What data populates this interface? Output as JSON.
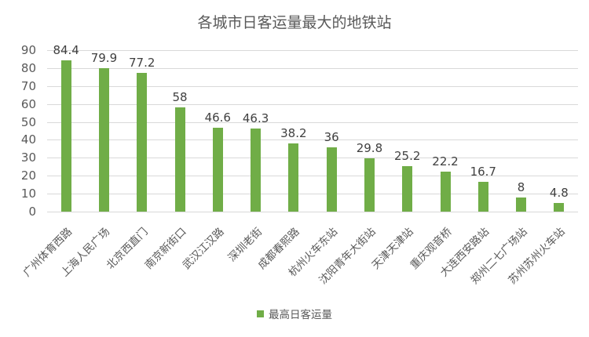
{
  "chart_data": {
    "type": "bar",
    "title": "各城市日客运量最大的地铁站",
    "xlabel": "",
    "ylabel": "",
    "ylim": [
      0,
      90
    ],
    "yticks": [
      0,
      10,
      20,
      30,
      40,
      50,
      60,
      70,
      80,
      90
    ],
    "grid": true,
    "legend_position": "bottom",
    "categories": [
      "广州体育西路",
      "上海人民广场",
      "北京西直门",
      "南京新街口",
      "武汉江汉路",
      "深圳老街",
      "成都春熙路",
      "杭州火车东站",
      "沈阳青年大街站",
      "天津天津站",
      "重庆观音桥",
      "大连西安路站",
      "郑州二七广场站",
      "苏州苏州火车站"
    ],
    "series": [
      {
        "name": "最高日客运量",
        "color": "#70ad47",
        "values": [
          84.4,
          79.9,
          77.2,
          58,
          46.6,
          46.3,
          38.2,
          36,
          29.8,
          25.2,
          22.2,
          16.7,
          8,
          4.8
        ],
        "labels": [
          "84.4",
          "79.9",
          "77.2",
          "58",
          "46.6",
          "46.3",
          "38.2",
          "36",
          "29.8",
          "25.2",
          "22.2",
          "16.7",
          "8",
          "4.8"
        ]
      }
    ]
  },
  "legend": {
    "label": "最高日客运量",
    "color": "#70ad47"
  }
}
